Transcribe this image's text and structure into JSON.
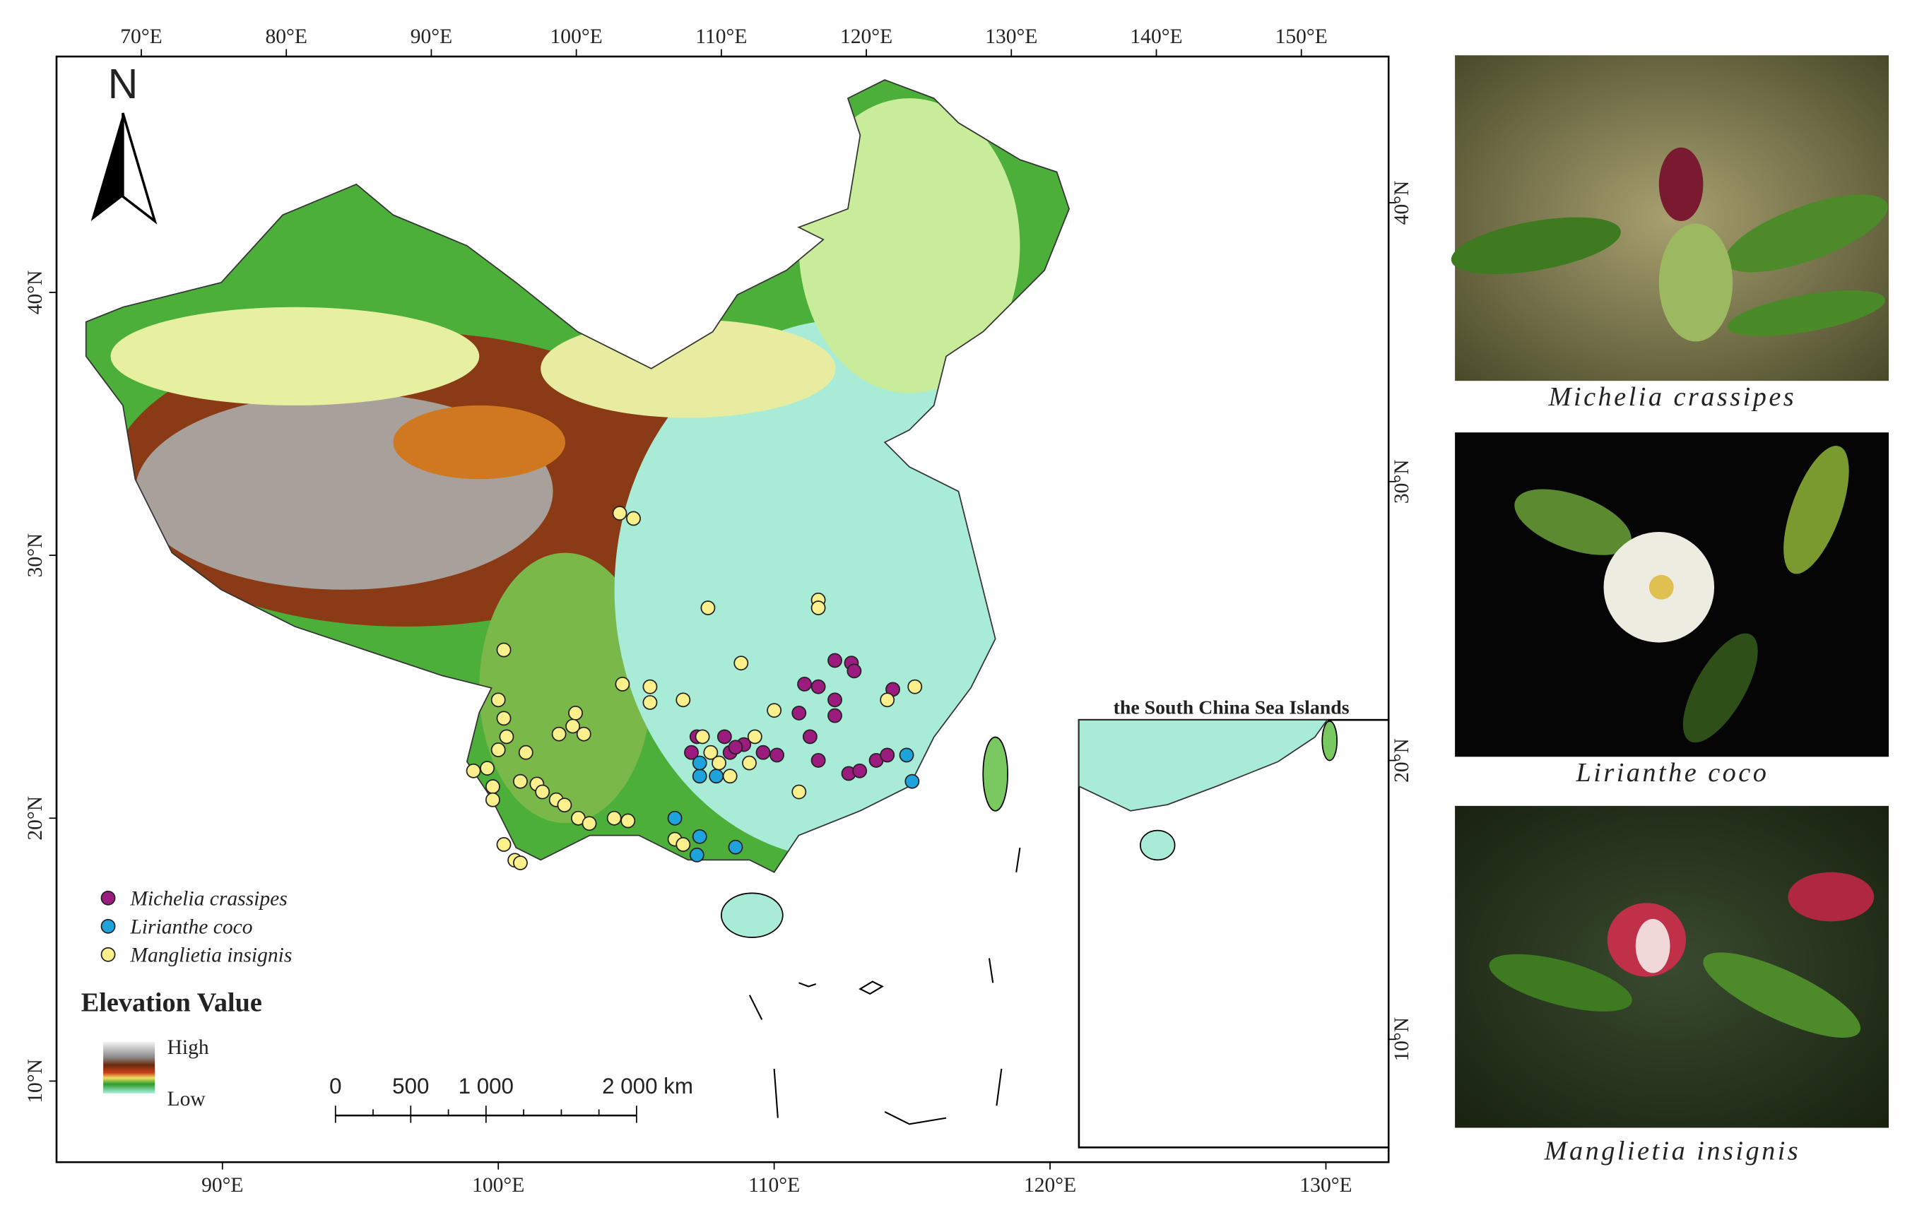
{
  "map": {
    "north_label": "N",
    "top_ticks": [
      {
        "value": 70,
        "label": "70°E"
      },
      {
        "value": 80,
        "label": "80°E"
      },
      {
        "value": 90,
        "label": "90°E"
      },
      {
        "value": 100,
        "label": "100°E"
      },
      {
        "value": 110,
        "label": "110°E"
      },
      {
        "value": 120,
        "label": "120°E"
      },
      {
        "value": 130,
        "label": "130°E"
      },
      {
        "value": 140,
        "label": "140°E"
      },
      {
        "value": 150,
        "label": "150°E"
      }
    ],
    "bottom_ticks": [
      {
        "value": 90,
        "label": "90°E"
      },
      {
        "value": 100,
        "label": "100°E"
      },
      {
        "value": 110,
        "label": "110°E"
      },
      {
        "value": 120,
        "label": "120°E"
      },
      {
        "value": 130,
        "label": "130°E"
      }
    ],
    "left_ticks": [
      {
        "value": 10,
        "label": "10°N"
      },
      {
        "value": 20,
        "label": "20°N"
      },
      {
        "value": 30,
        "label": "30°N"
      },
      {
        "value": 40,
        "label": "40°N"
      }
    ],
    "right_ticks": [
      {
        "value": 10,
        "label": "10°N"
      },
      {
        "value": 20,
        "label": "20°N"
      },
      {
        "value": 30,
        "label": "30°N"
      },
      {
        "value": 40,
        "label": "40°N"
      }
    ],
    "inset_title": "the South China Sea Islands",
    "elevation_title": "Elevation Value",
    "elevation_high": "High",
    "elevation_low": "Low",
    "scale_bar": [
      {
        "value": 0,
        "label": "0"
      },
      {
        "value": 500,
        "label": "500"
      },
      {
        "value": 1000,
        "label": "1 000"
      },
      {
        "value": 2000,
        "label": "2 000 km"
      }
    ],
    "species": [
      {
        "name": "Michelia crassipes",
        "color": "#9b1b7e",
        "points": [
          [
            107.0,
            22.5
          ],
          [
            107.2,
            23.1
          ],
          [
            108.2,
            23.1
          ],
          [
            108.4,
            22.5
          ],
          [
            108.9,
            22.8
          ],
          [
            109.6,
            22.5
          ],
          [
            110.1,
            22.4
          ],
          [
            108.6,
            22.7
          ],
          [
            110.9,
            24.0
          ],
          [
            111.1,
            25.1
          ],
          [
            111.6,
            25.0
          ],
          [
            112.2,
            26.0
          ],
          [
            112.8,
            25.9
          ],
          [
            112.9,
            25.6
          ],
          [
            112.2,
            24.5
          ],
          [
            112.2,
            23.9
          ],
          [
            111.3,
            23.1
          ],
          [
            111.6,
            22.2
          ],
          [
            112.7,
            21.7
          ],
          [
            113.1,
            21.8
          ],
          [
            113.7,
            22.2
          ],
          [
            114.1,
            22.4
          ],
          [
            114.3,
            24.9
          ]
        ]
      },
      {
        "name": "Lirianthe coco",
        "color": "#1ea3dc",
        "points": [
          [
            107.3,
            21.6
          ],
          [
            107.9,
            21.6
          ],
          [
            107.3,
            22.1
          ],
          [
            106.4,
            20.0
          ],
          [
            107.3,
            19.3
          ],
          [
            107.2,
            18.6
          ],
          [
            108.6,
            18.9
          ],
          [
            114.8,
            22.4
          ],
          [
            115.0,
            21.4
          ]
        ]
      },
      {
        "name": "Manglietia insignis",
        "color": "#fbf08c",
        "points": [
          [
            104.4,
            31.6
          ],
          [
            104.9,
            31.4
          ],
          [
            107.6,
            28.0
          ],
          [
            111.6,
            28.3
          ],
          [
            111.6,
            28.0
          ],
          [
            108.8,
            25.9
          ],
          [
            104.5,
            25.1
          ],
          [
            105.5,
            25.0
          ],
          [
            105.5,
            24.4
          ],
          [
            106.7,
            24.5
          ],
          [
            100.2,
            26.4
          ],
          [
            100.0,
            24.5
          ],
          [
            100.2,
            23.8
          ],
          [
            100.3,
            23.1
          ],
          [
            100.0,
            22.6
          ],
          [
            99.1,
            21.8
          ],
          [
            99.6,
            21.9
          ],
          [
            99.8,
            21.2
          ],
          [
            99.8,
            20.7
          ],
          [
            101.0,
            22.5
          ],
          [
            100.8,
            21.4
          ],
          [
            101.4,
            21.3
          ],
          [
            101.6,
            21.0
          ],
          [
            102.8,
            24.0
          ],
          [
            102.7,
            23.5
          ],
          [
            103.1,
            23.2
          ],
          [
            102.2,
            23.2
          ],
          [
            102.9,
            20.0
          ],
          [
            103.3,
            19.8
          ],
          [
            104.2,
            20.0
          ],
          [
            104.7,
            19.9
          ],
          [
            102.1,
            20.7
          ],
          [
            102.4,
            20.5
          ],
          [
            100.2,
            19.0
          ],
          [
            100.6,
            18.4
          ],
          [
            100.8,
            18.3
          ],
          [
            106.4,
            19.2
          ],
          [
            106.7,
            19.0
          ],
          [
            107.4,
            23.1
          ],
          [
            107.7,
            22.5
          ],
          [
            108.0,
            22.1
          ],
          [
            108.4,
            21.6
          ],
          [
            109.1,
            22.1
          ],
          [
            109.3,
            23.1
          ],
          [
            110.0,
            24.1
          ],
          [
            110.9,
            21.0
          ],
          [
            114.1,
            24.5
          ],
          [
            115.1,
            25.0
          ]
        ]
      }
    ]
  },
  "photos": [
    {
      "caption": "Michelia crassipes"
    },
    {
      "caption": "Lirianthe coco"
    },
    {
      "caption": "Manglietia insignis"
    }
  ]
}
